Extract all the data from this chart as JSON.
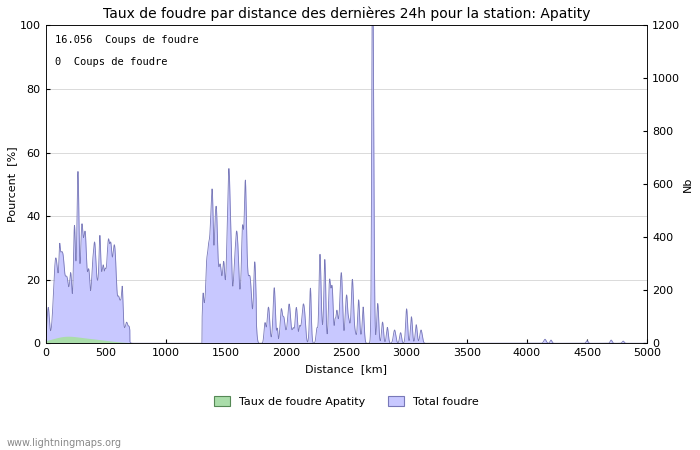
{
  "title": "Taux de foudre par distance des dernières 24h pour la station: Apatity",
  "xlabel": "Distance  [km]",
  "ylabel_left": "Pourcent  [%]",
  "ylabel_right": "Nb",
  "annotation_line1": "16.056  Coups de foudre",
  "annotation_line2": "0  Coups de foudre",
  "legend_green": "Taux de foudre Apatity",
  "legend_blue": "Total foudre",
  "watermark": "www.lightningmaps.org",
  "xlim": [
    0,
    5000
  ],
  "ylim_left": [
    0,
    100
  ],
  "ylim_right": [
    0,
    1200
  ],
  "fill_color_blue": "#c8c8ff",
  "line_color_blue": "#7878b8",
  "fill_color_green": "#aaddaa",
  "xticks": [
    0,
    500,
    1000,
    1500,
    2000,
    2500,
    3000,
    3500,
    4000,
    4500,
    5000
  ],
  "yticks_left": [
    0,
    20,
    40,
    60,
    80,
    100
  ],
  "yticks_right": [
    0,
    200,
    400,
    600,
    800,
    1000,
    1200
  ],
  "title_fontsize": 10,
  "label_fontsize": 8,
  "tick_fontsize": 8,
  "figsize": [
    7.0,
    4.5
  ],
  "dpi": 100
}
